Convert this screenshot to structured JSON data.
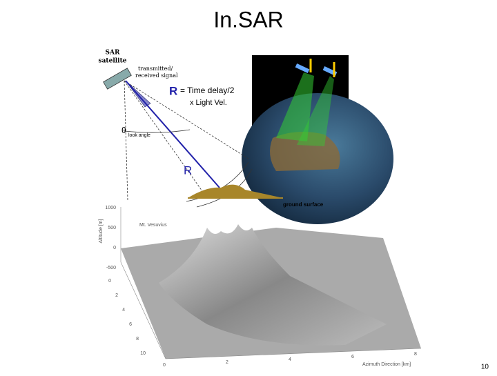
{
  "title": "In.SAR",
  "page_number": "10",
  "diagram": {
    "satellite_label": [
      "SAR",
      "satellite"
    ],
    "signal_label": [
      "transmitted/",
      "received signal"
    ],
    "range_formula": {
      "symbol": "R",
      "line1": "= Time delay/2",
      "line2": "x Light Vel."
    },
    "look_angle": {
      "symbol": "θ",
      "subscript": "look angle"
    },
    "range_label": "R",
    "ground_label": "ground surface"
  },
  "dem": {
    "altitude_axis_label": "Altitude [m]",
    "altitude_ticks": [
      "1000",
      "500",
      "0",
      "-500"
    ],
    "place_label": "Mt. Vesuvius",
    "range_ticks": [
      "0",
      "2",
      "4",
      "6",
      "8",
      "10"
    ],
    "azimuth_ticks": [
      "0",
      "2",
      "4",
      "6",
      "8"
    ],
    "azimuth_axis_label": "Azimuth Direction [km]"
  }
}
